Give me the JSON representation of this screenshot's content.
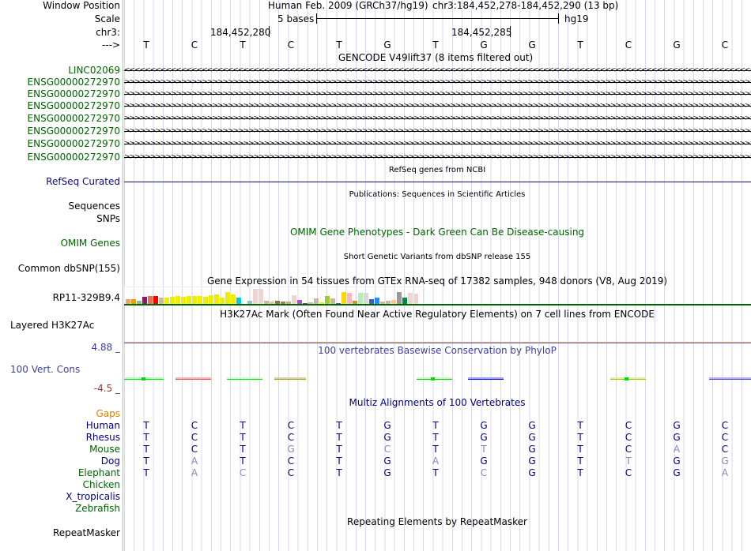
{
  "header": {
    "assembly": "Human Feb. 2009 (GRCh37/hg19)",
    "position": "chr3:184,452,278-184,452,290 (13 bp)",
    "scale": "5 bases",
    "db": "hg19",
    "pos1": "184,452,280",
    "pos2": "184,452,285"
  },
  "labels": {
    "window": "Window Position",
    "scale": "Scale",
    "chr": "chr3:",
    "strand": "--->",
    "refseq": "RefSeq Curated",
    "sequences": "Sequences",
    "snps": "SNPs",
    "omim": "OMIM Genes",
    "dbsnp": "Common dbSNP(155)",
    "gtex_gene": "RP11-329B9.4",
    "h3k27ac": "Layered H3K27Ac",
    "cons_max": "4.88 _",
    "cons": "100 Vert. Cons",
    "cons_min": "-4.5 _",
    "gaps": "Gaps",
    "repeatmasker": "RepeatMasker"
  },
  "bases": [
    "T",
    "C",
    "T",
    "C",
    "T",
    "G",
    "T",
    "G",
    "G",
    "T",
    "C",
    "G",
    "C"
  ],
  "titles": {
    "gencode": "GENCODE V49lift37 (8 items filtered out)",
    "refseq": "RefSeq genes from NCBI",
    "pubs": "Publications: Sequences in Scientific Articles",
    "omim": "OMIM Gene Phenotypes - Dark Green Can Be Disease-causing",
    "dbsnp": "Short Genetic Variants from dbSNP release 155",
    "gtex": "Gene Expression in 54 tissues from GTEx RNA-seq of 17382 samples, 948 donors (V8, Aug 2019)",
    "h3k27ac": "H3K27Ac Mark (Often Found Near Active Regulatory Elements) on 7 cell lines from ENCODE",
    "cons": "100 vertebrates Basewise Conservation by PhyloP",
    "multiz": "Multiz Alignments of 100 Vertebrates",
    "rmsk": "Repeating Elements by RepeatMasker"
  },
  "genes": [
    {
      "name": "LINC02069",
      "strand": "-"
    },
    {
      "name": "ENSG00000272970",
      "strand": "+"
    },
    {
      "name": "ENSG00000272970",
      "strand": "+"
    },
    {
      "name": "ENSG00000272970",
      "strand": "+"
    },
    {
      "name": "ENSG00000272970",
      "strand": "+"
    },
    {
      "name": "ENSG00000272970",
      "strand": "+"
    },
    {
      "name": "ENSG00000272970",
      "strand": "+"
    },
    {
      "name": "ENSG00000272970",
      "strand": "+"
    }
  ],
  "gtex_bars": [
    {
      "c": "#f4a460",
      "v": 0.35
    },
    {
      "c": "#ee9a00",
      "v": 0.35
    },
    {
      "c": "#8fbc8f",
      "v": 0.25
    },
    {
      "c": "#8b1c62",
      "v": 0.5
    },
    {
      "c": "#ee6a50",
      "v": 0.55
    },
    {
      "c": "#ff0000",
      "v": 0.55
    },
    {
      "c": "#cdb79e",
      "v": 0.45
    },
    {
      "c": "#eeee00",
      "v": 0.45
    },
    {
      "c": "#eeee00",
      "v": 0.5
    },
    {
      "c": "#eeee00",
      "v": 0.55
    },
    {
      "c": "#eeee00",
      "v": 0.5
    },
    {
      "c": "#eeee00",
      "v": 0.55
    },
    {
      "c": "#eeee00",
      "v": 0.55
    },
    {
      "c": "#eeee00",
      "v": 0.55
    },
    {
      "c": "#eeee00",
      "v": 0.5
    },
    {
      "c": "#eeee00",
      "v": 0.6
    },
    {
      "c": "#eeee00",
      "v": 0.65
    },
    {
      "c": "#eeee00",
      "v": 0.45
    },
    {
      "c": "#eeee00",
      "v": 0.8
    },
    {
      "c": "#eeee00",
      "v": 0.65
    },
    {
      "c": "#00cdcd",
      "v": 0.45
    },
    {
      "c": "#ffffff",
      "v": 0
    },
    {
      "c": "#9ac0cd",
      "v": 0.25
    },
    {
      "c": "#eed5d2",
      "v": 1.0
    },
    {
      "c": "#eed5d2",
      "v": 1.0
    },
    {
      "c": "#cdb79e",
      "v": 0.25
    },
    {
      "c": "#f4c28f",
      "v": 0.2
    },
    {
      "c": "#8b7355",
      "v": 0.25
    },
    {
      "c": "#a0785a",
      "v": 0.2
    },
    {
      "c": "#cdaa7d",
      "v": 0.2
    },
    {
      "c": "#eed5d2",
      "v": 0.6
    },
    {
      "c": "#b452cd",
      "v": 0.28
    },
    {
      "c": "#7a378b",
      "v": 0.1
    },
    {
      "c": "#cdb79e",
      "v": 0.15
    },
    {
      "c": "#cdb79e",
      "v": 0.4
    },
    {
      "c": "#eeee00",
      "v": 0.15
    },
    {
      "c": "#9acd32",
      "v": 0.55
    },
    {
      "c": "#cdb79e",
      "v": 0.4
    },
    {
      "c": "#3a5fcd",
      "v": 0.08
    },
    {
      "c": "#ffd700",
      "v": 0.8
    },
    {
      "c": "#ffb6c1",
      "v": 0.75
    },
    {
      "c": "#cd9b1d",
      "v": 0.25
    },
    {
      "c": "#b4eeb4",
      "v": 0.75
    },
    {
      "c": "#d9d9d9",
      "v": 0.75
    },
    {
      "c": "#3a5fcd",
      "v": 0.35
    },
    {
      "c": "#1e90ff",
      "v": 0.45
    },
    {
      "c": "#cdb79e",
      "v": 0.2
    },
    {
      "c": "#cdb79e",
      "v": 0.25
    },
    {
      "c": "#ffc68c",
      "v": 0.3
    },
    {
      "c": "#999999",
      "v": 0.8
    },
    {
      "c": "#008b45",
      "v": 0.45
    },
    {
      "c": "#eed5d2",
      "v": 0.75
    },
    {
      "c": "#eed5d2",
      "v": 0.7
    },
    {
      "c": "#eeeeee",
      "v": 0.05
    }
  ],
  "multiz": [
    {
      "species": "Human",
      "color": "#000080",
      "seq": [
        "T",
        "C",
        "T",
        "C",
        "T",
        "G",
        "T",
        "G",
        "G",
        "T",
        "C",
        "G",
        "C"
      ],
      "diff": []
    },
    {
      "species": "Rhesus",
      "color": "#000080",
      "seq": [
        "T",
        "C",
        "T",
        "C",
        "T",
        "G",
        "T",
        "G",
        "G",
        "T",
        "C",
        "G",
        "C"
      ],
      "diff": []
    },
    {
      "species": "Mouse",
      "color": "#006400",
      "seq": [
        "T",
        "C",
        "T",
        "G",
        "T",
        "C",
        "T",
        "T",
        "G",
        "T",
        "C",
        "A",
        "C"
      ],
      "diff": [
        3,
        5,
        7,
        11
      ]
    },
    {
      "species": "Dog",
      "color": "#000080",
      "seq": [
        "T",
        "A",
        "T",
        "C",
        "T",
        "G",
        "A",
        "G",
        "G",
        "T",
        "T",
        "G",
        "G"
      ],
      "diff": [
        1,
        6,
        10,
        12
      ]
    },
    {
      "species": "Elephant",
      "color": "#006400",
      "seq": [
        "T",
        "A",
        "C",
        "C",
        "T",
        "G",
        "T",
        "C",
        "G",
        "T",
        "C",
        "G",
        "A"
      ],
      "diff": [
        1,
        2,
        7,
        12
      ]
    },
    {
      "species": "Chicken",
      "color": "#006400",
      "seq": [],
      "diff": []
    },
    {
      "species": "X_tropicalis",
      "color": "#000080",
      "seq": [],
      "diff": []
    },
    {
      "species": "Zebrafish",
      "color": "#006400",
      "seq": [],
      "diff": []
    }
  ]
}
